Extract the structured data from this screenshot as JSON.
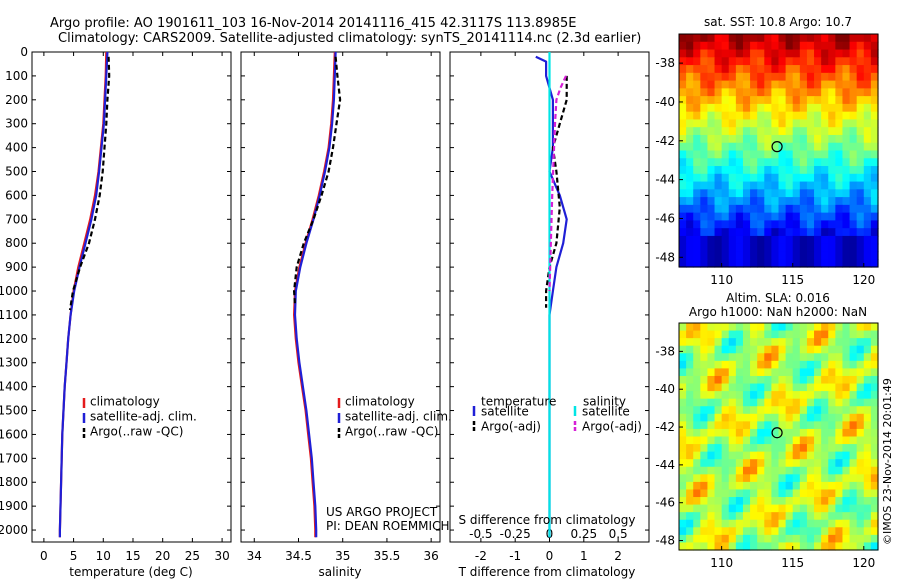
{
  "header": {
    "line1": "Argo profile: AO 1901611_103 16-Nov-2014 20141116_415 42.3117S 113.8985E",
    "line2": "Climatology: CARS2009. Satellite-adjusted climatology: synTS_20141114.nc (2.3d earlier)"
  },
  "depth_ticks": [
    "0",
    "100",
    "200",
    "300",
    "400",
    "500",
    "600",
    "700",
    "800",
    "900",
    "1000",
    "1100",
    "1200",
    "1300",
    "1400",
    "1500",
    "1600",
    "1700",
    "1800",
    "1900",
    "2000"
  ],
  "colors": {
    "climatology": "#e41a1c",
    "satellite": "#1f1fd6",
    "argo": "#000000",
    "sat_sal": "#00e5e5",
    "argo_sal": "#d61fd6"
  },
  "credit": {
    "line1": "US ARGO PROJECT",
    "line2": "PI: DEAN ROEMMICH"
  },
  "side_stamp": "©IMOS 23-Nov-2014 20:01:49",
  "chart_data": [
    {
      "type": "line",
      "xlabel": "temperature (deg C)",
      "x_ticks": [
        "0",
        "5",
        "10",
        "15",
        "20",
        "25",
        "30"
      ],
      "xlim": [
        -2,
        31.5
      ],
      "ylim": [
        0,
        2050
      ],
      "y_reversed": true,
      "legend": [
        "climatology",
        "satellite-adj. clim.",
        "Argo(..raw -QC)"
      ],
      "series": [
        {
          "name": "climatology",
          "x": [
            10.5,
            10.4,
            10.2,
            10.0,
            9.6,
            9.2,
            8.6,
            7.8,
            6.8,
            5.8,
            5.0,
            4.5,
            4.1,
            3.8,
            3.5,
            3.3,
            3.1,
            3.0,
            2.9,
            2.8,
            2.7,
            2.7
          ],
          "y": [
            0,
            100,
            200,
            300,
            400,
            500,
            600,
            700,
            800,
            900,
            1000,
            1100,
            1200,
            1300,
            1400,
            1500,
            1600,
            1700,
            1800,
            1900,
            2000,
            2030
          ]
        },
        {
          "name": "satellite-adj. clim.",
          "x": [
            10.7,
            10.5,
            10.3,
            10.1,
            9.7,
            9.3,
            8.8,
            8.0,
            7.0,
            6.0,
            5.1,
            4.5,
            4.1,
            3.8,
            3.5,
            3.3,
            3.1,
            3.0,
            2.9,
            2.8,
            2.7,
            2.7
          ],
          "y": [
            0,
            100,
            200,
            300,
            400,
            500,
            600,
            700,
            800,
            900,
            1000,
            1100,
            1200,
            1300,
            1400,
            1500,
            1600,
            1700,
            1800,
            1900,
            2000,
            2030
          ]
        },
        {
          "name": "Argo(..raw -QC)",
          "x": [
            10.9,
            11.0,
            10.7,
            10.5,
            10.2,
            9.9,
            9.4,
            8.6,
            7.6,
            6.1,
            4.9,
            4.4
          ],
          "y": [
            20,
            100,
            200,
            300,
            400,
            500,
            600,
            700,
            800,
            900,
            1000,
            1080
          ]
        }
      ]
    },
    {
      "type": "line",
      "xlabel": "salinity",
      "x_ticks": [
        "34",
        "34.5",
        "35",
        "35.5",
        "36"
      ],
      "xlim": [
        33.85,
        36.1
      ],
      "ylim": [
        0,
        2050
      ],
      "y_reversed": true,
      "legend": [
        "climatology",
        "satellite-adj. clim.",
        "Argo(..raw -QC)"
      ],
      "series": [
        {
          "name": "climatology",
          "x": [
            34.91,
            34.9,
            34.89,
            34.87,
            34.84,
            34.79,
            34.73,
            34.66,
            34.58,
            34.51,
            34.46,
            34.45,
            34.47,
            34.5,
            34.54,
            34.58,
            34.61,
            34.64,
            34.66,
            34.68,
            34.69,
            34.69
          ],
          "y": [
            0,
            100,
            200,
            300,
            400,
            500,
            600,
            700,
            800,
            900,
            1000,
            1100,
            1200,
            1300,
            1400,
            1500,
            1600,
            1700,
            1800,
            1900,
            2000,
            2030
          ]
        },
        {
          "name": "satellite-adj. clim.",
          "x": [
            34.92,
            34.91,
            34.9,
            34.88,
            34.85,
            34.8,
            34.74,
            34.67,
            34.59,
            34.52,
            34.47,
            34.46,
            34.48,
            34.51,
            34.55,
            34.59,
            34.62,
            34.65,
            34.67,
            34.69,
            34.7,
            34.7
          ],
          "y": [
            0,
            100,
            200,
            300,
            400,
            500,
            600,
            700,
            800,
            900,
            1000,
            1100,
            1200,
            1300,
            1400,
            1500,
            1600,
            1700,
            1800,
            1900,
            2000,
            2030
          ]
        },
        {
          "name": "Argo(..raw -QC)",
          "x": [
            34.92,
            34.94,
            34.97,
            34.93,
            34.89,
            34.84,
            34.76,
            34.67,
            34.56,
            34.48,
            34.45,
            34.46
          ],
          "y": [
            20,
            100,
            200,
            300,
            400,
            500,
            600,
            700,
            800,
            900,
            1000,
            1060
          ]
        }
      ]
    },
    {
      "type": "line",
      "xlabel": "T difference from climatology",
      "xlabel_top": "S difference from climatology",
      "x_ticks": [
        "-2",
        "-1",
        "0",
        "1",
        "2"
      ],
      "x_ticks_top": [
        "-0.5",
        "-0.25",
        "0",
        "0.25",
        "0.5"
      ],
      "xlim": [
        -2.9,
        2.9
      ],
      "ylim": [
        0,
        2050
      ],
      "y_reversed": true,
      "legend_titles": [
        "temperature",
        "salinity"
      ],
      "legend": [
        "satellite",
        "Argo(-adj)",
        "satellite",
        "Argo(-adj)"
      ],
      "series": [
        {
          "name": "satellite",
          "x": [
            -0.4,
            -0.1,
            -0.1,
            0.1,
            0.1,
            0.0,
            0.3,
            0.5,
            0.4,
            0.2,
            0.1,
            0.0,
            0.0,
            0.0,
            0.0,
            0.0
          ],
          "y": [
            20,
            40,
            100,
            200,
            400,
            500,
            600,
            700,
            800,
            900,
            1000,
            1100,
            1300,
            1600,
            1900,
            2030
          ]
        },
        {
          "name": "Argo(-adj)",
          "x": [
            0.5,
            0.5,
            0.5,
            0.3,
            0.1,
            0.2,
            0.3,
            0.2,
            0.0,
            -0.1,
            -0.1
          ],
          "y": [
            100,
            150,
            200,
            300,
            400,
            500,
            650,
            800,
            900,
            1000,
            1070
          ]
        },
        {
          "name": "satellite",
          "x": [
            0.0,
            0.0,
            0.0,
            0.0,
            0.0,
            0.0
          ],
          "y": [
            0,
            100,
            500,
            1000,
            1500,
            2030
          ]
        },
        {
          "name": "Argo(-adj)",
          "x": [
            0.12,
            0.08,
            0.05,
            0.04,
            0.02,
            0.0
          ],
          "y": [
            100,
            150,
            200,
            300,
            600,
            1000
          ]
        }
      ]
    },
    {
      "type": "heatmap",
      "title": "sat. SST: 10.8 Argo: 10.7",
      "x_ticks": [
        "110",
        "115",
        "120"
      ],
      "y_ticks": [
        "-38",
        "-40",
        "-42",
        "-44",
        "-46",
        "-48"
      ],
      "xlim": [
        107,
        121
      ],
      "ylim": [
        -48.5,
        -36.5
      ],
      "marker": {
        "lon": 113.9,
        "lat": -42.3
      }
    },
    {
      "type": "heatmap",
      "title": "Altim. SLA: 0.016",
      "subtitle": "Argo h1000: NaN h2000: NaN",
      "x_ticks": [
        "110",
        "115",
        "120"
      ],
      "y_ticks": [
        "-38",
        "-40",
        "-42",
        "-44",
        "-46",
        "-48"
      ],
      "xlim": [
        107,
        121
      ],
      "ylim": [
        -48.5,
        -36.5
      ],
      "marker": {
        "lon": 113.9,
        "lat": -42.3
      }
    }
  ]
}
